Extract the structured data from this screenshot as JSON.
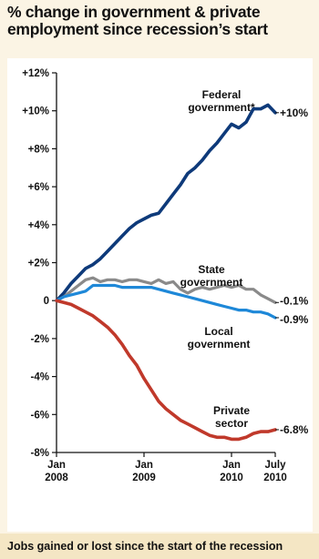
{
  "header": {
    "title_line1": "% change in government & private",
    "title_line2": "employment since recession’s start"
  },
  "footer": {
    "caption": "Jobs gained or lost since the start of the recession"
  },
  "colors": {
    "background": "#fbf4e4",
    "plot_background": "#ffffff",
    "federal": "#0e3a7a",
    "state": "#8a8a8a",
    "local": "#1e88d8",
    "private": "#c0392b",
    "footer_bg": "#f4e6c4"
  },
  "chart_data": {
    "type": "line",
    "title": "% change in government & private employment since recession’s start",
    "xlabel": "",
    "ylabel": "",
    "ylim": [
      -8,
      12
    ],
    "yticks": [
      12,
      10,
      8,
      6,
      4,
      2,
      0,
      -2,
      -4,
      -6,
      -8
    ],
    "ytick_labels": [
      "+12%",
      "+10%",
      "+8%",
      "+6%",
      "+4%",
      "+2%",
      "0",
      "-2%",
      "-4%",
      "-6%",
      "-8%"
    ],
    "xlim": [
      "2008-01",
      "2010-07"
    ],
    "xticks": [
      {
        "x": "2008-01",
        "line1": "Jan",
        "line2": "2008"
      },
      {
        "x": "2009-01",
        "line1": "Jan",
        "line2": "2009"
      },
      {
        "x": "2010-01",
        "line1": "Jan",
        "line2": "2010"
      },
      {
        "x": "2010-07",
        "line1": "July",
        "line2": "2010"
      }
    ],
    "grid": false,
    "series": [
      {
        "name": "Federal government*",
        "label_lines": [
          "Federal",
          "government*"
        ],
        "end_label": "+10%",
        "color_key": "federal",
        "points": [
          [
            "2008-01",
            0
          ],
          [
            "2008-02",
            0.4
          ],
          [
            "2008-03",
            0.9
          ],
          [
            "2008-04",
            1.3
          ],
          [
            "2008-05",
            1.7
          ],
          [
            "2008-06",
            1.9
          ],
          [
            "2008-07",
            2.2
          ],
          [
            "2008-08",
            2.6
          ],
          [
            "2008-09",
            3.0
          ],
          [
            "2008-10",
            3.4
          ],
          [
            "2008-11",
            3.8
          ],
          [
            "2008-12",
            4.1
          ],
          [
            "2009-01",
            4.3
          ],
          [
            "2009-02",
            4.5
          ],
          [
            "2009-03",
            4.6
          ],
          [
            "2009-04",
            5.1
          ],
          [
            "2009-05",
            5.6
          ],
          [
            "2009-06",
            6.1
          ],
          [
            "2009-07",
            6.7
          ],
          [
            "2009-08",
            7.0
          ],
          [
            "2009-09",
            7.4
          ],
          [
            "2009-10",
            7.9
          ],
          [
            "2009-11",
            8.3
          ],
          [
            "2009-12",
            8.8
          ],
          [
            "2010-01",
            9.3
          ],
          [
            "2010-02",
            9.1
          ],
          [
            "2010-03",
            9.4
          ],
          [
            "2010-04",
            10.1
          ],
          [
            "2010-05",
            10.1
          ],
          [
            "2010-06",
            10.3
          ],
          [
            "2010-07",
            9.9
          ]
        ]
      },
      {
        "name": "State government",
        "label_lines": [
          "State",
          "government"
        ],
        "end_label": "-0.1%",
        "color_key": "state",
        "points": [
          [
            "2008-01",
            0
          ],
          [
            "2008-02",
            0.2
          ],
          [
            "2008-03",
            0.5
          ],
          [
            "2008-04",
            0.8
          ],
          [
            "2008-05",
            1.1
          ],
          [
            "2008-06",
            1.2
          ],
          [
            "2008-07",
            1.0
          ],
          [
            "2008-08",
            1.1
          ],
          [
            "2008-09",
            1.1
          ],
          [
            "2008-10",
            1.0
          ],
          [
            "2008-11",
            1.1
          ],
          [
            "2008-12",
            1.1
          ],
          [
            "2009-01",
            1.0
          ],
          [
            "2009-02",
            0.9
          ],
          [
            "2009-03",
            1.1
          ],
          [
            "2009-04",
            0.9
          ],
          [
            "2009-05",
            1.0
          ],
          [
            "2009-06",
            0.6
          ],
          [
            "2009-07",
            0.4
          ],
          [
            "2009-08",
            0.6
          ],
          [
            "2009-09",
            0.7
          ],
          [
            "2009-10",
            0.6
          ],
          [
            "2009-11",
            0.7
          ],
          [
            "2009-12",
            0.8
          ],
          [
            "2010-01",
            0.7
          ],
          [
            "2010-02",
            0.8
          ],
          [
            "2010-03",
            0.6
          ],
          [
            "2010-04",
            0.6
          ],
          [
            "2010-05",
            0.3
          ],
          [
            "2010-06",
            0.1
          ],
          [
            "2010-07",
            -0.1
          ]
        ]
      },
      {
        "name": "Local government",
        "label_lines": [
          "Local",
          "government"
        ],
        "end_label": "-0.9%",
        "color_key": "local",
        "points": [
          [
            "2008-01",
            0
          ],
          [
            "2008-02",
            0.2
          ],
          [
            "2008-03",
            0.3
          ],
          [
            "2008-04",
            0.4
          ],
          [
            "2008-05",
            0.5
          ],
          [
            "2008-06",
            0.8
          ],
          [
            "2008-07",
            0.8
          ],
          [
            "2008-08",
            0.8
          ],
          [
            "2008-09",
            0.8
          ],
          [
            "2008-10",
            0.7
          ],
          [
            "2008-11",
            0.7
          ],
          [
            "2008-12",
            0.7
          ],
          [
            "2009-01",
            0.7
          ],
          [
            "2009-02",
            0.7
          ],
          [
            "2009-03",
            0.6
          ],
          [
            "2009-04",
            0.5
          ],
          [
            "2009-05",
            0.4
          ],
          [
            "2009-06",
            0.3
          ],
          [
            "2009-07",
            0.2
          ],
          [
            "2009-08",
            0.1
          ],
          [
            "2009-09",
            0.0
          ],
          [
            "2009-10",
            -0.1
          ],
          [
            "2009-11",
            -0.2
          ],
          [
            "2009-12",
            -0.3
          ],
          [
            "2010-01",
            -0.4
          ],
          [
            "2010-02",
            -0.5
          ],
          [
            "2010-03",
            -0.5
          ],
          [
            "2010-04",
            -0.6
          ],
          [
            "2010-05",
            -0.6
          ],
          [
            "2010-06",
            -0.7
          ],
          [
            "2010-07",
            -0.9
          ]
        ]
      },
      {
        "name": "Private sector",
        "label_lines": [
          "Private",
          "sector"
        ],
        "end_label": "-6.8%",
        "color_key": "private",
        "points": [
          [
            "2008-01",
            0
          ],
          [
            "2008-02",
            -0.1
          ],
          [
            "2008-03",
            -0.2
          ],
          [
            "2008-04",
            -0.4
          ],
          [
            "2008-05",
            -0.6
          ],
          [
            "2008-06",
            -0.8
          ],
          [
            "2008-07",
            -1.1
          ],
          [
            "2008-08",
            -1.4
          ],
          [
            "2008-09",
            -1.8
          ],
          [
            "2008-10",
            -2.3
          ],
          [
            "2008-11",
            -2.9
          ],
          [
            "2008-12",
            -3.4
          ],
          [
            "2009-01",
            -4.1
          ],
          [
            "2009-02",
            -4.7
          ],
          [
            "2009-03",
            -5.3
          ],
          [
            "2009-04",
            -5.7
          ],
          [
            "2009-05",
            -6.0
          ],
          [
            "2009-06",
            -6.3
          ],
          [
            "2009-07",
            -6.5
          ],
          [
            "2009-08",
            -6.7
          ],
          [
            "2009-09",
            -6.9
          ],
          [
            "2009-10",
            -7.1
          ],
          [
            "2009-11",
            -7.2
          ],
          [
            "2009-12",
            -7.2
          ],
          [
            "2010-01",
            -7.3
          ],
          [
            "2010-02",
            -7.3
          ],
          [
            "2010-03",
            -7.2
          ],
          [
            "2010-04",
            -7.0
          ],
          [
            "2010-05",
            -6.9
          ],
          [
            "2010-06",
            -6.9
          ],
          [
            "2010-07",
            -6.8
          ]
        ]
      }
    ]
  }
}
